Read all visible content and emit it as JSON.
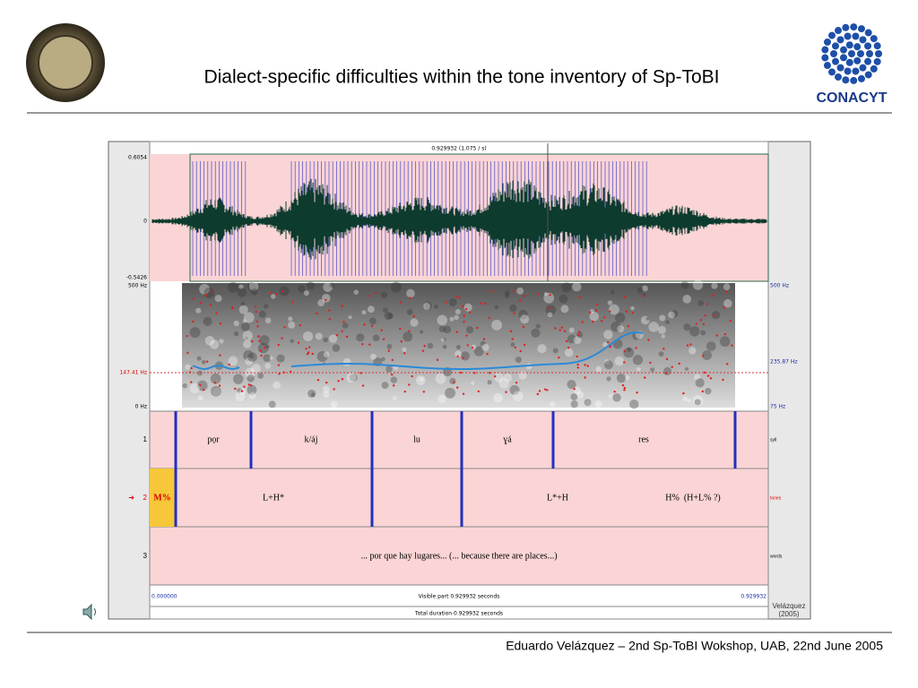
{
  "header": {
    "title": "Dialect-specific difficulties within the tone inventory of Sp-ToBI",
    "logo_text": "CONACYT"
  },
  "praat": {
    "top_label": "0.929932 (1.075 / s)",
    "wave_axis": [
      "0.6054",
      "0",
      "-0.5426"
    ],
    "freq_left": [
      "500 Hz",
      "147.41 Hz",
      "0 Hz"
    ],
    "freq_right": [
      "500 Hz",
      "235.87 Hz",
      "75 Hz"
    ],
    "tiers": [
      {
        "number": "1",
        "name": "syll",
        "labels": [
          "pọr",
          "k/áj",
          "lu",
          "ɣá",
          "res"
        ]
      },
      {
        "number": "2",
        "name": "tones",
        "labels": [
          "M%",
          "L+H*",
          "L*+H",
          "H%  (H+L% ?)"
        ]
      },
      {
        "number": "3",
        "name": "words",
        "labels": [
          "... por que hay lugares... (... because there are places...)"
        ]
      }
    ],
    "bottom": {
      "start": "0.000000",
      "visible": "Visible part 0.929932 seconds",
      "end": "0.929932",
      "total": "Total duration 0.929932 seconds"
    },
    "credit": [
      "Velázquez",
      "(2005)"
    ]
  },
  "footer": {
    "text": "Eduardo Velázquez – 2nd Sp-ToBI Wokshop, UAB, 22nd June 2005"
  }
}
